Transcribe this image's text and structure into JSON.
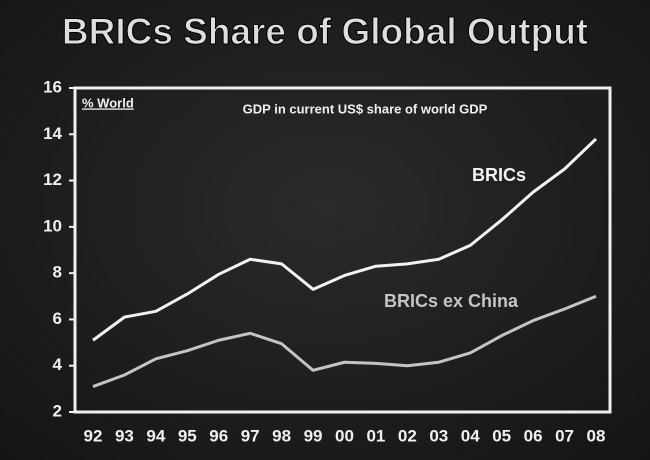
{
  "chart_data": {
    "type": "line",
    "title": "BRICs Share of Global Output",
    "subtitle": "GDP in current US$ share of world GDP",
    "y_label": "% World",
    "categories": [
      "92",
      "93",
      "94",
      "95",
      "96",
      "97",
      "98",
      "99",
      "00",
      "01",
      "02",
      "03",
      "04",
      "05",
      "06",
      "07",
      "08"
    ],
    "series": [
      {
        "name": "BRICs",
        "color": "#f2f2f2",
        "values": [
          5.1,
          6.1,
          6.35,
          7.1,
          7.95,
          8.6,
          8.4,
          7.3,
          7.9,
          8.3,
          8.4,
          8.6,
          9.2,
          10.3,
          11.5,
          12.5,
          13.8
        ]
      },
      {
        "name": "BRICs ex China",
        "color": "#c4c4c4",
        "values": [
          3.1,
          3.6,
          4.3,
          4.65,
          5.1,
          5.4,
          4.95,
          3.8,
          4.15,
          4.1,
          4.0,
          4.15,
          4.55,
          5.3,
          5.95,
          6.45,
          7.0
        ]
      }
    ],
    "ylim": [
      2,
      16
    ],
    "yticks": [
      2,
      4,
      6,
      8,
      10,
      12,
      14,
      16
    ],
    "grid": false
  }
}
